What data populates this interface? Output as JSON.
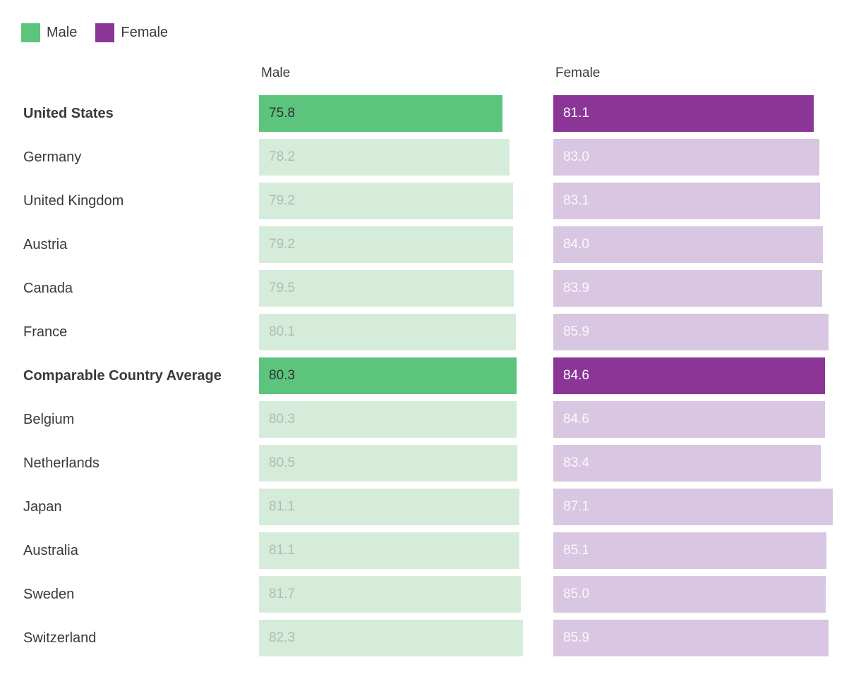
{
  "colors": {
    "green_strong": "#5cc47d",
    "green_light": "#d5ecda",
    "purple_strong": "#8b3597",
    "purple_light": "#d9c6e2",
    "label_color": "#3a3a3a",
    "value_dark": "#323232",
    "value_gray": "#b4b9b6"
  },
  "legend": {
    "male_label": "Male",
    "female_label": "Female"
  },
  "columns": {
    "male_header": "Male",
    "female_header": "Female"
  },
  "chart_data": {
    "type": "bar",
    "orientation": "horizontal",
    "title": "",
    "xlabel": "",
    "ylabel": "",
    "legend_position": "top-left",
    "grid": false,
    "bars_proportional_to_value_from_zero": true,
    "value_axis_range": [
      0,
      88
    ],
    "categories": [
      "United States",
      "Germany",
      "United Kingdom",
      "Austria",
      "Canada",
      "France",
      "Comparable Country Average",
      "Belgium",
      "Netherlands",
      "Japan",
      "Australia",
      "Sweden",
      "Switzerland"
    ],
    "series": [
      {
        "name": "Male",
        "color": "#5cc47d",
        "values": [
          75.8,
          78.2,
          79.2,
          79.2,
          79.5,
          80.1,
          80.3,
          80.3,
          80.5,
          81.1,
          81.1,
          81.7,
          82.3
        ]
      },
      {
        "name": "Female",
        "color": "#8b3597",
        "values": [
          81.1,
          83.0,
          83.1,
          84.0,
          83.9,
          85.9,
          84.6,
          84.6,
          83.4,
          87.1,
          85.1,
          85.0,
          85.9
        ]
      }
    ],
    "highlighted_categories": [
      "United States",
      "Comparable Country Average"
    ],
    "rows": [
      {
        "label": "United States",
        "male": "75.8",
        "female": "81.1",
        "highlight": true
      },
      {
        "label": "Germany",
        "male": "78.2",
        "female": "83.0",
        "highlight": false
      },
      {
        "label": "United Kingdom",
        "male": "79.2",
        "female": "83.1",
        "highlight": false
      },
      {
        "label": "Austria",
        "male": "79.2",
        "female": "84.0",
        "highlight": false
      },
      {
        "label": "Canada",
        "male": "79.5",
        "female": "83.9",
        "highlight": false
      },
      {
        "label": "France",
        "male": "80.1",
        "female": "85.9",
        "highlight": false
      },
      {
        "label": "Comparable Country Average",
        "male": "80.3",
        "female": "84.6",
        "highlight": true
      },
      {
        "label": "Belgium",
        "male": "80.3",
        "female": "84.6",
        "highlight": false
      },
      {
        "label": "Netherlands",
        "male": "80.5",
        "female": "83.4",
        "highlight": false
      },
      {
        "label": "Japan",
        "male": "81.1",
        "female": "87.1",
        "highlight": false
      },
      {
        "label": "Australia",
        "male": "81.1",
        "female": "85.1",
        "highlight": false
      },
      {
        "label": "Sweden",
        "male": "81.7",
        "female": "85.0",
        "highlight": false
      },
      {
        "label": "Switzerland",
        "male": "82.3",
        "female": "85.9",
        "highlight": false
      }
    ]
  }
}
